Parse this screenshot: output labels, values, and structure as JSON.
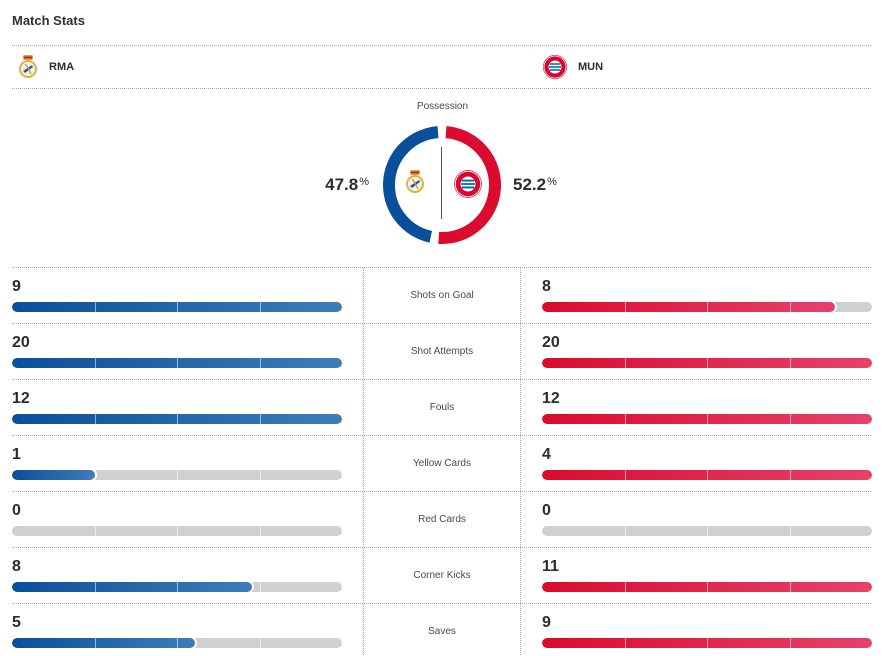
{
  "header": {
    "title": "Match Stats"
  },
  "teams": {
    "home": {
      "abbr": "RMA",
      "crest_icon": "real-madrid-crest-icon",
      "color": "#0a4f9b"
    },
    "away": {
      "abbr": "MUN",
      "crest_icon": "bayern-munich-crest-icon",
      "color": "#dc0a2f"
    }
  },
  "possession": {
    "label": "Possession",
    "home": {
      "value": "47.8",
      "unit": "%",
      "fraction": 0.478
    },
    "away": {
      "value": "52.2",
      "unit": "%",
      "fraction": 0.522
    }
  },
  "stats": [
    {
      "name": "Shots on Goal",
      "home": 9,
      "away": 8
    },
    {
      "name": "Shot Attempts",
      "home": 20,
      "away": 20
    },
    {
      "name": "Fouls",
      "home": 12,
      "away": 12
    },
    {
      "name": "Yellow Cards",
      "home": 1,
      "away": 4
    },
    {
      "name": "Red Cards",
      "home": 0,
      "away": 0
    },
    {
      "name": "Corner Kicks",
      "home": 8,
      "away": 11
    },
    {
      "name": "Saves",
      "home": 5,
      "away": 9
    }
  ]
}
